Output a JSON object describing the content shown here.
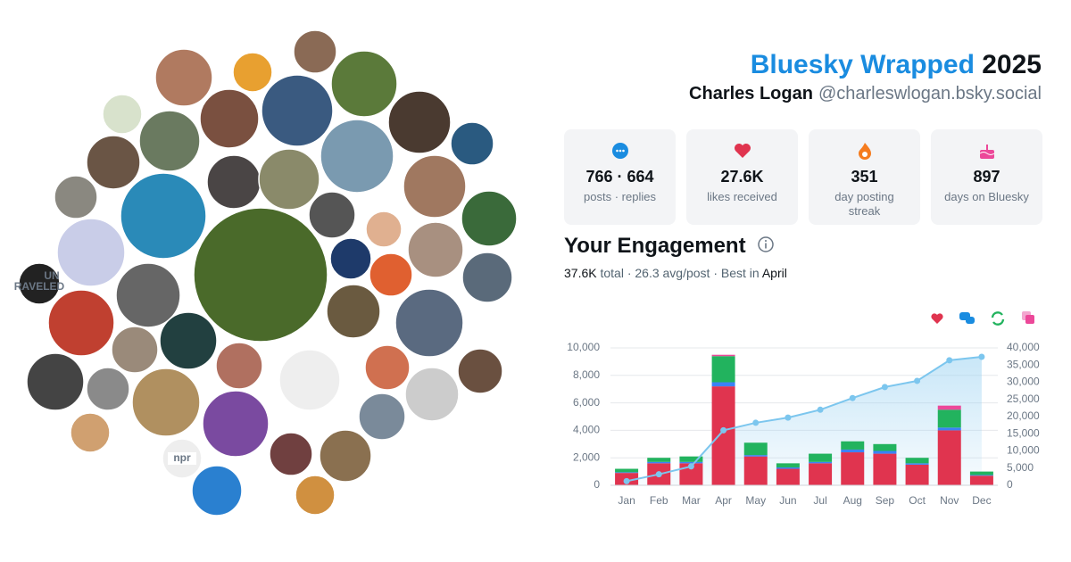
{
  "header": {
    "brand": "Bluesky Wrapped",
    "year": "2025",
    "name": "Charles Logan",
    "handle": "@charleswlogan.bsky.social"
  },
  "avatar_texts": {
    "unraveled_top": "UN",
    "unraveled_bottom": "RAVELED",
    "npr": "npr"
  },
  "stats": [
    {
      "value": "766 · 664",
      "label": "posts · replies"
    },
    {
      "value": "27.6K",
      "label": "likes received"
    },
    {
      "value": "351",
      "label": "day posting streak"
    },
    {
      "value": "897",
      "label": "days on Bluesky"
    }
  ],
  "engagement": {
    "title": "Your Engagement",
    "total_value": "37.6K",
    "total_rest": "total · 26.3 avg/post · Best in",
    "best_month": "April"
  },
  "chart_data": {
    "type": "bar",
    "stacked": true,
    "grid": true,
    "categories": [
      "Jan",
      "Feb",
      "Mar",
      "Apr",
      "May",
      "Jun",
      "Jul",
      "Aug",
      "Sep",
      "Oct",
      "Nov",
      "Dec"
    ],
    "series": [
      {
        "color": "#e0344f",
        "values": [
          900,
          1600,
          1600,
          7200,
          2100,
          1200,
          1600,
          2400,
          2300,
          1500,
          4000,
          700
        ]
      },
      {
        "color": "#3b82f6",
        "values": [
          50,
          100,
          100,
          300,
          100,
          100,
          100,
          200,
          200,
          100,
          200,
          50
        ]
      },
      {
        "color": "#22b35e",
        "values": [
          250,
          300,
          400,
          1900,
          900,
          300,
          600,
          600,
          500,
          400,
          1300,
          250
        ]
      },
      {
        "color": "#ec4899",
        "values": [
          0,
          0,
          0,
          100,
          0,
          0,
          0,
          0,
          0,
          0,
          300,
          0
        ]
      },
      {
        "type": "line",
        "axis": "y2",
        "color": "#7cc6ee",
        "values": [
          1200,
          3200,
          5500,
          16000,
          18200,
          19700,
          22000,
          25400,
          28600,
          30400,
          36400,
          37400
        ]
      }
    ],
    "ylim": [
      0,
      10000
    ],
    "yticks": [
      0,
      {
        "value": 2000,
        "label": "2,000"
      },
      {
        "value": 4000,
        "label": "4,000"
      },
      {
        "value": 6000,
        "label": "6,000"
      },
      {
        "value": 8000,
        "label": "8,000"
      },
      {
        "value": 10000,
        "label": "10,000"
      }
    ],
    "y2lim": [
      0,
      40000
    ],
    "y2ticks": [
      0,
      {
        "value": 5000,
        "label": "5,000"
      },
      {
        "value": 10000,
        "label": "10,000"
      },
      {
        "value": 15000,
        "label": "15,000"
      },
      {
        "value": 20000,
        "label": "20,000"
      },
      {
        "value": 25000,
        "label": "25,000"
      },
      {
        "value": 30000,
        "label": "30,000"
      },
      {
        "value": 35000,
        "label": "35,000"
      },
      {
        "value": 40000,
        "label": "40,000"
      }
    ]
  }
}
